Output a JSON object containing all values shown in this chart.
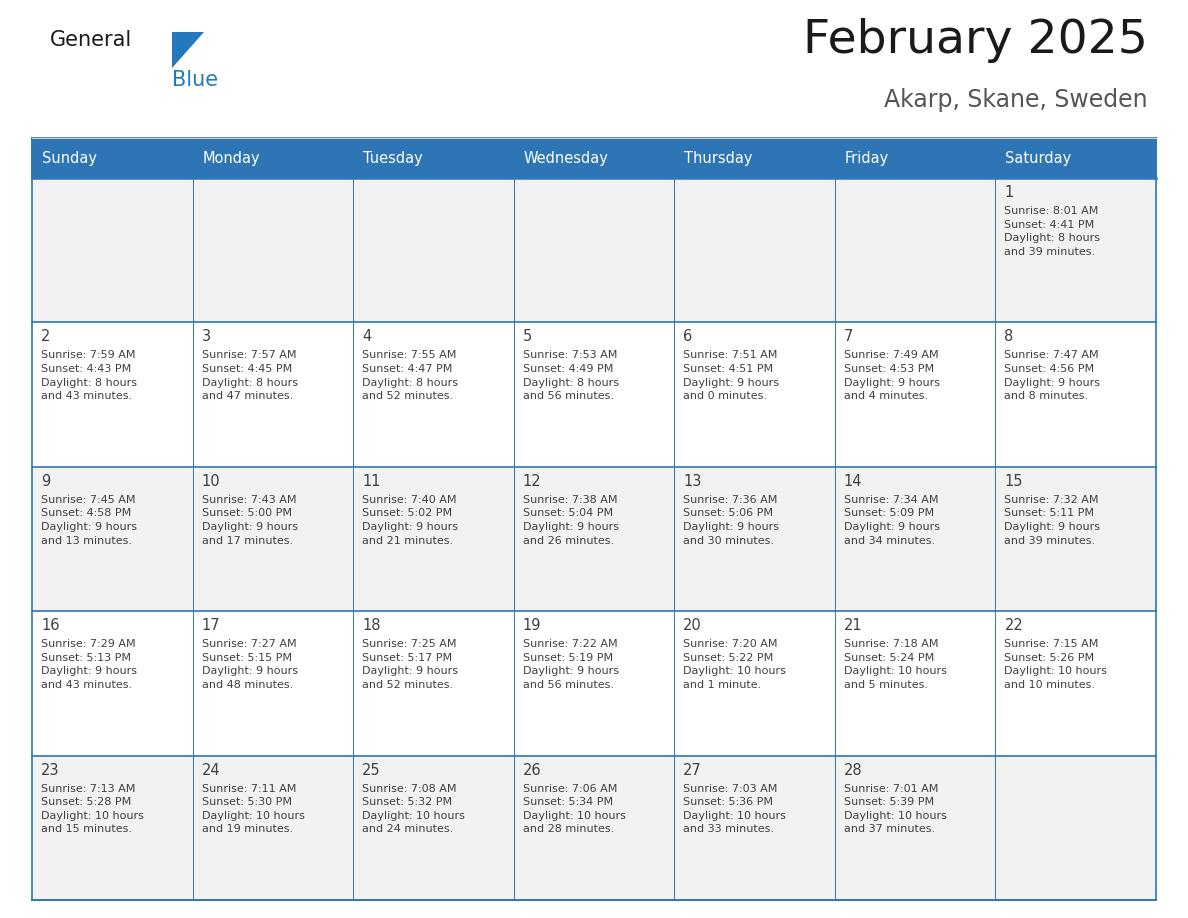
{
  "title": "February 2025",
  "subtitle": "Akarp, Skane, Sweden",
  "header_color": "#2E75B6",
  "header_text_color": "#FFFFFF",
  "row_colors": [
    "#F2F2F2",
    "#FFFFFF"
  ],
  "border_color": "#2E75B6",
  "day_number_color": "#404040",
  "cell_text_color": "#404040",
  "weekdays": [
    "Sunday",
    "Monday",
    "Tuesday",
    "Wednesday",
    "Thursday",
    "Friday",
    "Saturday"
  ],
  "weeks": [
    [
      {
        "day": "",
        "info": ""
      },
      {
        "day": "",
        "info": ""
      },
      {
        "day": "",
        "info": ""
      },
      {
        "day": "",
        "info": ""
      },
      {
        "day": "",
        "info": ""
      },
      {
        "day": "",
        "info": ""
      },
      {
        "day": "1",
        "info": "Sunrise: 8:01 AM\nSunset: 4:41 PM\nDaylight: 8 hours\nand 39 minutes."
      }
    ],
    [
      {
        "day": "2",
        "info": "Sunrise: 7:59 AM\nSunset: 4:43 PM\nDaylight: 8 hours\nand 43 minutes."
      },
      {
        "day": "3",
        "info": "Sunrise: 7:57 AM\nSunset: 4:45 PM\nDaylight: 8 hours\nand 47 minutes."
      },
      {
        "day": "4",
        "info": "Sunrise: 7:55 AM\nSunset: 4:47 PM\nDaylight: 8 hours\nand 52 minutes."
      },
      {
        "day": "5",
        "info": "Sunrise: 7:53 AM\nSunset: 4:49 PM\nDaylight: 8 hours\nand 56 minutes."
      },
      {
        "day": "6",
        "info": "Sunrise: 7:51 AM\nSunset: 4:51 PM\nDaylight: 9 hours\nand 0 minutes."
      },
      {
        "day": "7",
        "info": "Sunrise: 7:49 AM\nSunset: 4:53 PM\nDaylight: 9 hours\nand 4 minutes."
      },
      {
        "day": "8",
        "info": "Sunrise: 7:47 AM\nSunset: 4:56 PM\nDaylight: 9 hours\nand 8 minutes."
      }
    ],
    [
      {
        "day": "9",
        "info": "Sunrise: 7:45 AM\nSunset: 4:58 PM\nDaylight: 9 hours\nand 13 minutes."
      },
      {
        "day": "10",
        "info": "Sunrise: 7:43 AM\nSunset: 5:00 PM\nDaylight: 9 hours\nand 17 minutes."
      },
      {
        "day": "11",
        "info": "Sunrise: 7:40 AM\nSunset: 5:02 PM\nDaylight: 9 hours\nand 21 minutes."
      },
      {
        "day": "12",
        "info": "Sunrise: 7:38 AM\nSunset: 5:04 PM\nDaylight: 9 hours\nand 26 minutes."
      },
      {
        "day": "13",
        "info": "Sunrise: 7:36 AM\nSunset: 5:06 PM\nDaylight: 9 hours\nand 30 minutes."
      },
      {
        "day": "14",
        "info": "Sunrise: 7:34 AM\nSunset: 5:09 PM\nDaylight: 9 hours\nand 34 minutes."
      },
      {
        "day": "15",
        "info": "Sunrise: 7:32 AM\nSunset: 5:11 PM\nDaylight: 9 hours\nand 39 minutes."
      }
    ],
    [
      {
        "day": "16",
        "info": "Sunrise: 7:29 AM\nSunset: 5:13 PM\nDaylight: 9 hours\nand 43 minutes."
      },
      {
        "day": "17",
        "info": "Sunrise: 7:27 AM\nSunset: 5:15 PM\nDaylight: 9 hours\nand 48 minutes."
      },
      {
        "day": "18",
        "info": "Sunrise: 7:25 AM\nSunset: 5:17 PM\nDaylight: 9 hours\nand 52 minutes."
      },
      {
        "day": "19",
        "info": "Sunrise: 7:22 AM\nSunset: 5:19 PM\nDaylight: 9 hours\nand 56 minutes."
      },
      {
        "day": "20",
        "info": "Sunrise: 7:20 AM\nSunset: 5:22 PM\nDaylight: 10 hours\nand 1 minute."
      },
      {
        "day": "21",
        "info": "Sunrise: 7:18 AM\nSunset: 5:24 PM\nDaylight: 10 hours\nand 5 minutes."
      },
      {
        "day": "22",
        "info": "Sunrise: 7:15 AM\nSunset: 5:26 PM\nDaylight: 10 hours\nand 10 minutes."
      }
    ],
    [
      {
        "day": "23",
        "info": "Sunrise: 7:13 AM\nSunset: 5:28 PM\nDaylight: 10 hours\nand 15 minutes."
      },
      {
        "day": "24",
        "info": "Sunrise: 7:11 AM\nSunset: 5:30 PM\nDaylight: 10 hours\nand 19 minutes."
      },
      {
        "day": "25",
        "info": "Sunrise: 7:08 AM\nSunset: 5:32 PM\nDaylight: 10 hours\nand 24 minutes."
      },
      {
        "day": "26",
        "info": "Sunrise: 7:06 AM\nSunset: 5:34 PM\nDaylight: 10 hours\nand 28 minutes."
      },
      {
        "day": "27",
        "info": "Sunrise: 7:03 AM\nSunset: 5:36 PM\nDaylight: 10 hours\nand 33 minutes."
      },
      {
        "day": "28",
        "info": "Sunrise: 7:01 AM\nSunset: 5:39 PM\nDaylight: 10 hours\nand 37 minutes."
      },
      {
        "day": "",
        "info": ""
      }
    ]
  ],
  "logo_general_color": "#1a1a1a",
  "logo_blue_color": "#2479BD",
  "logo_triangle_color": "#2479BD",
  "title_color": "#1a1a1a",
  "subtitle_color": "#555555"
}
